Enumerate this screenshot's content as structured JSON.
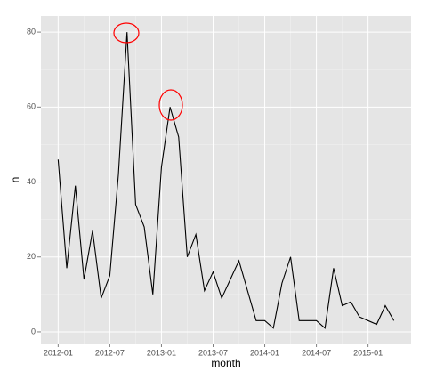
{
  "chart_data": {
    "type": "line",
    "x_label": "month",
    "y_label": "n",
    "x": [
      "2012-01",
      "2012-02",
      "2012-03",
      "2012-04",
      "2012-05",
      "2012-06",
      "2012-07",
      "2012-08",
      "2012-09",
      "2012-10",
      "2012-11",
      "2012-12",
      "2013-01",
      "2013-02",
      "2013-03",
      "2013-04",
      "2013-05",
      "2013-06",
      "2013-07",
      "2013-08",
      "2013-09",
      "2013-10",
      "2013-11",
      "2013-12",
      "2014-01",
      "2014-02",
      "2014-03",
      "2014-04",
      "2014-05",
      "2014-06",
      "2014-07",
      "2014-08",
      "2014-09",
      "2014-10",
      "2014-11",
      "2014-12",
      "2015-01",
      "2015-02",
      "2015-03",
      "2015-04"
    ],
    "values": [
      46,
      17,
      39,
      14,
      27,
      9,
      15,
      42,
      80,
      34,
      28,
      10,
      44,
      60,
      52,
      20,
      26,
      11,
      16,
      9,
      14,
      19,
      11,
      3,
      3,
      1,
      13,
      20,
      3,
      3,
      3,
      1,
      17,
      7,
      8,
      4,
      3,
      2,
      7,
      3
    ],
    "color": "#000000",
    "xlim": [
      "2011-11",
      "2015-06"
    ],
    "xticks": [
      "2012-01",
      "2012-07",
      "2013-01",
      "2013-07",
      "2014-01",
      "2014-07",
      "2015-01"
    ],
    "ylim": [
      -3.1,
      84.3
    ],
    "yticks": [
      0,
      20,
      40,
      60,
      80
    ],
    "grid": true
  }
}
